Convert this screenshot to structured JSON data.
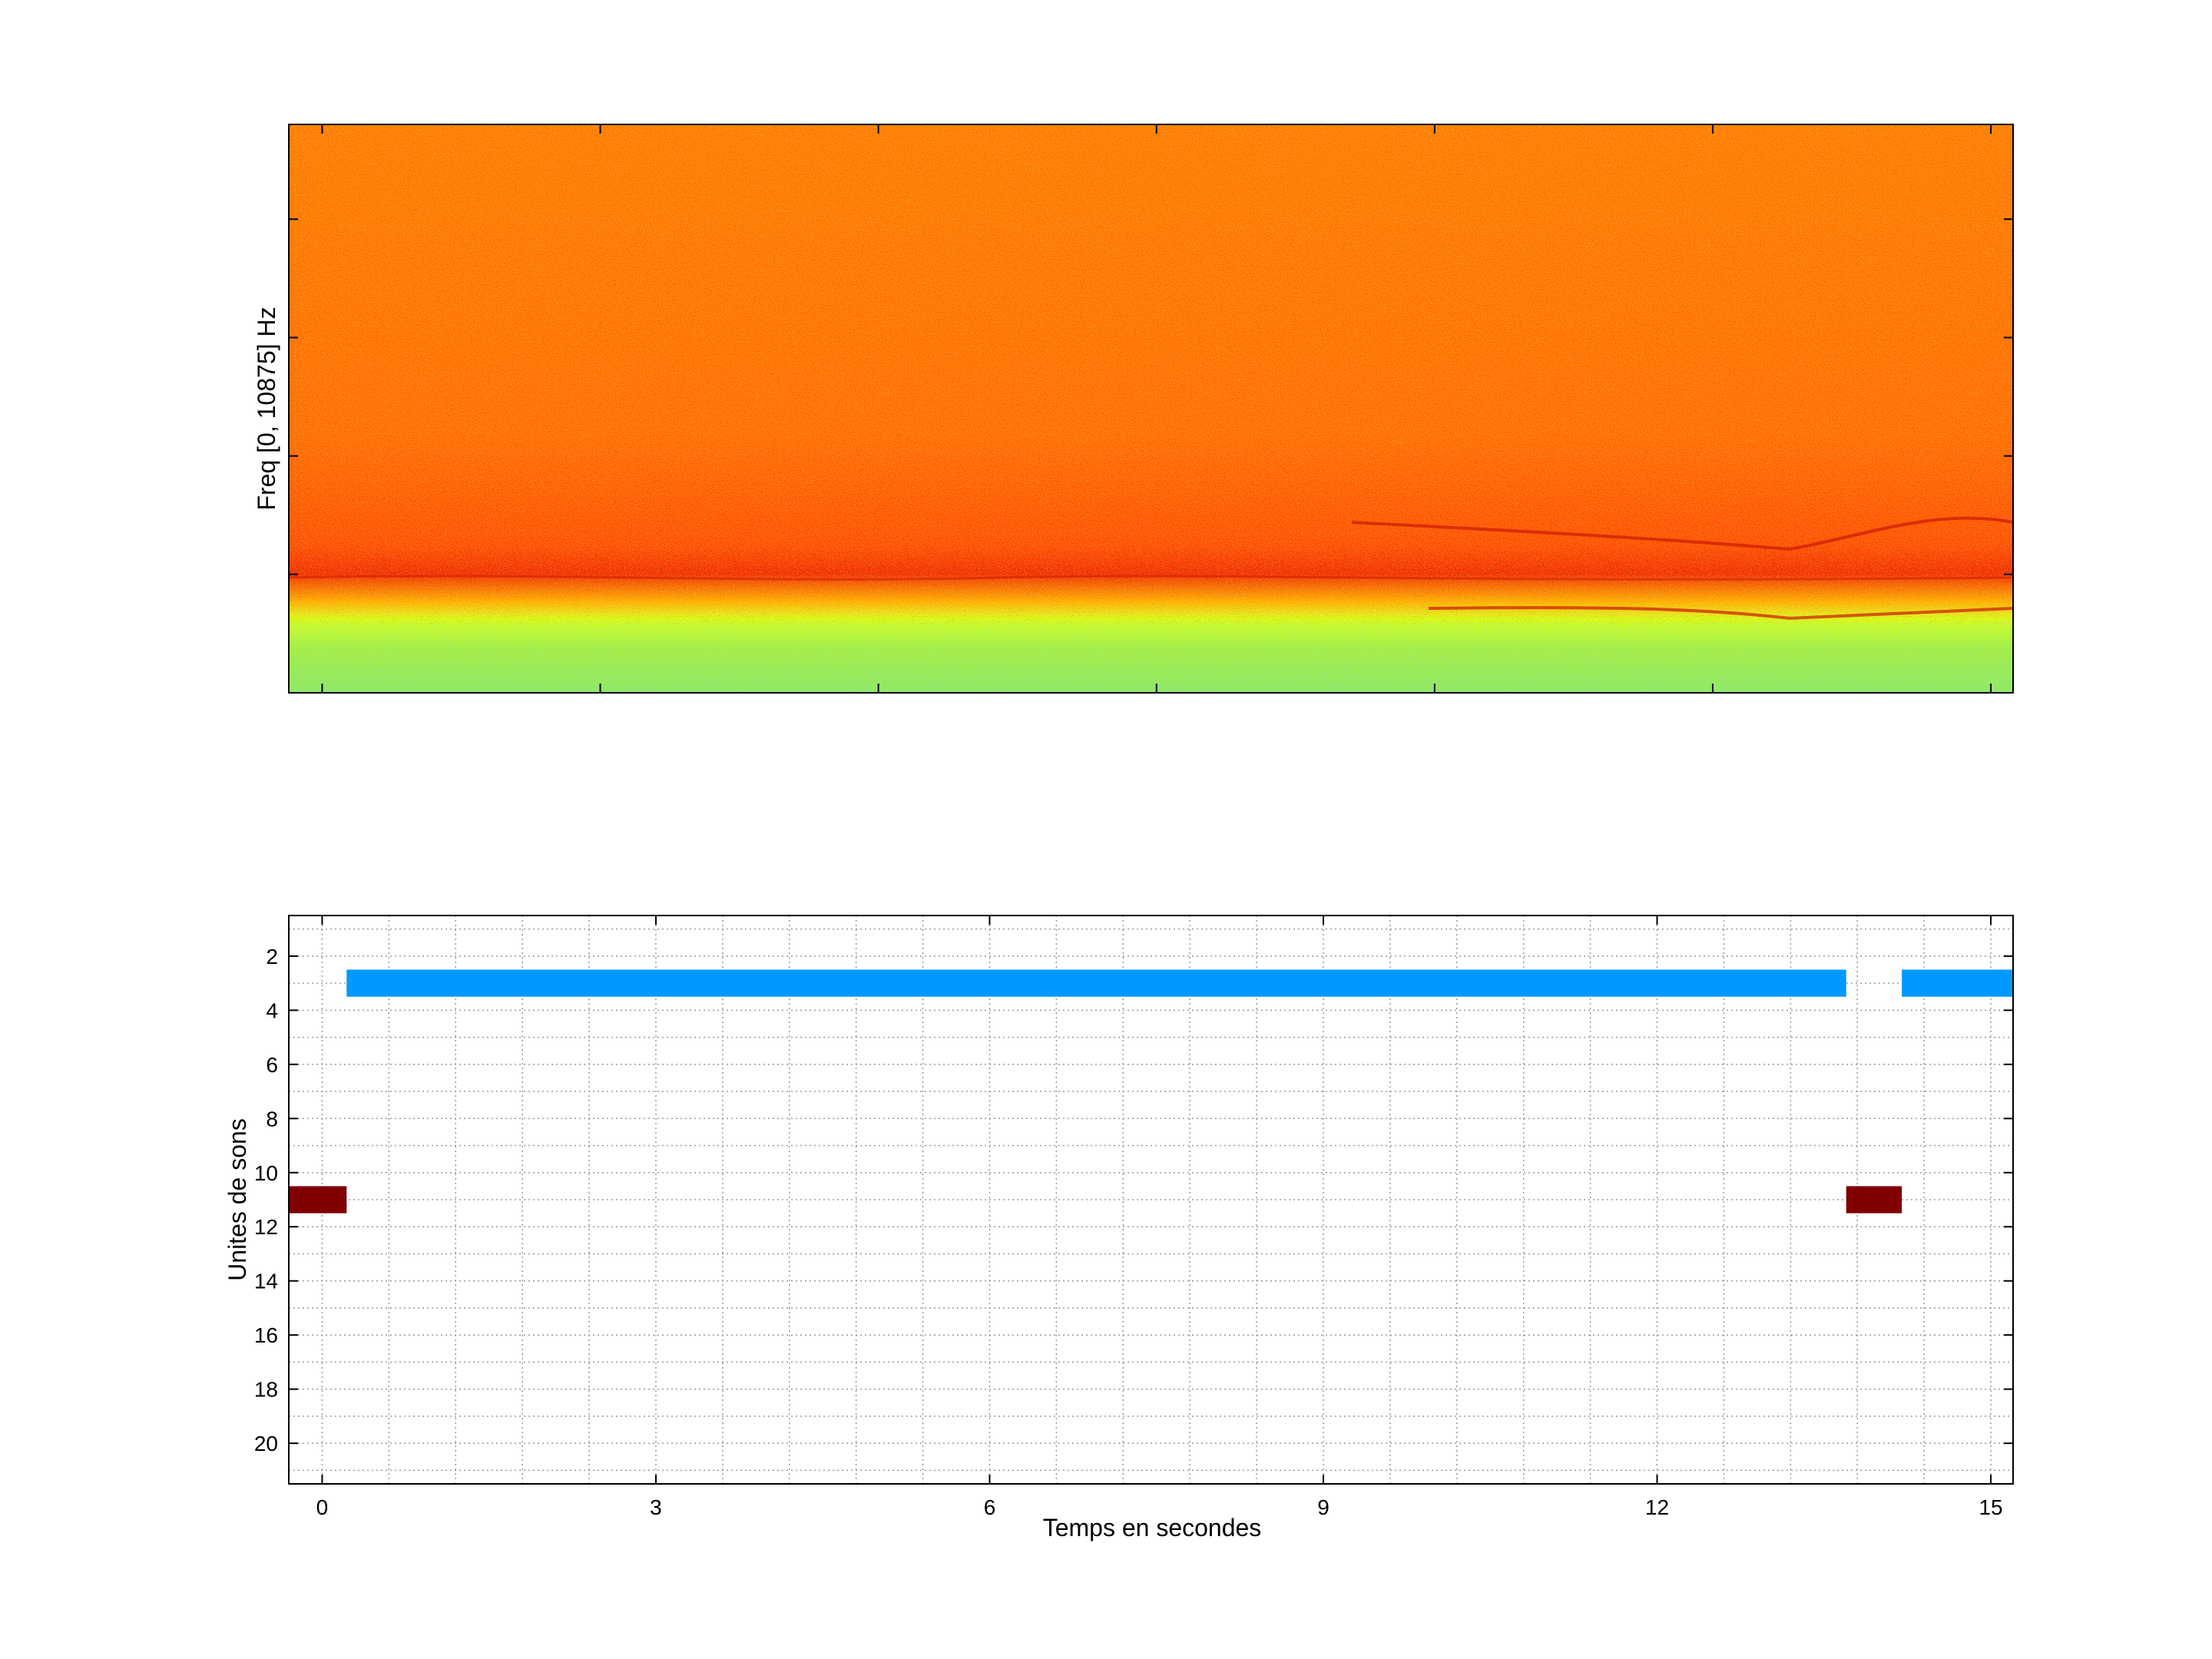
{
  "chart_data": [
    {
      "type": "heatmap",
      "title": "",
      "xlabel": "",
      "ylabel": "Freq [0, 10875] Hz",
      "colormap": "jet",
      "y_range_hz": [
        0,
        10875
      ],
      "x_range_s": [
        -0.3,
        15.2
      ],
      "description_bands": {
        "low_band_color": "#a8ee40",
        "high_band_color": "#ff8c00"
      }
    },
    {
      "type": "bar",
      "orientation": "horizontal-segments",
      "title": "",
      "xlabel": "Temps en secondes",
      "ylabel": "Unites de sons",
      "xlim": [
        -0.3,
        15.2
      ],
      "ylim": [
        21.5,
        0.5
      ],
      "xticks": [
        0,
        3,
        6,
        9,
        12,
        15
      ],
      "yticks": [
        2,
        4,
        6,
        8,
        10,
        12,
        14,
        16,
        18,
        20
      ],
      "grid": true,
      "segments": [
        {
          "unit": 3,
          "start": 0.22,
          "end": 13.7,
          "color": "#0099ff"
        },
        {
          "unit": 3,
          "start": 14.2,
          "end": 15.2,
          "color": "#0099ff"
        },
        {
          "unit": 11,
          "start": -0.3,
          "end": 0.22,
          "color": "#800000"
        },
        {
          "unit": 11,
          "start": 13.7,
          "end": 14.2,
          "color": "#800000"
        }
      ]
    }
  ]
}
